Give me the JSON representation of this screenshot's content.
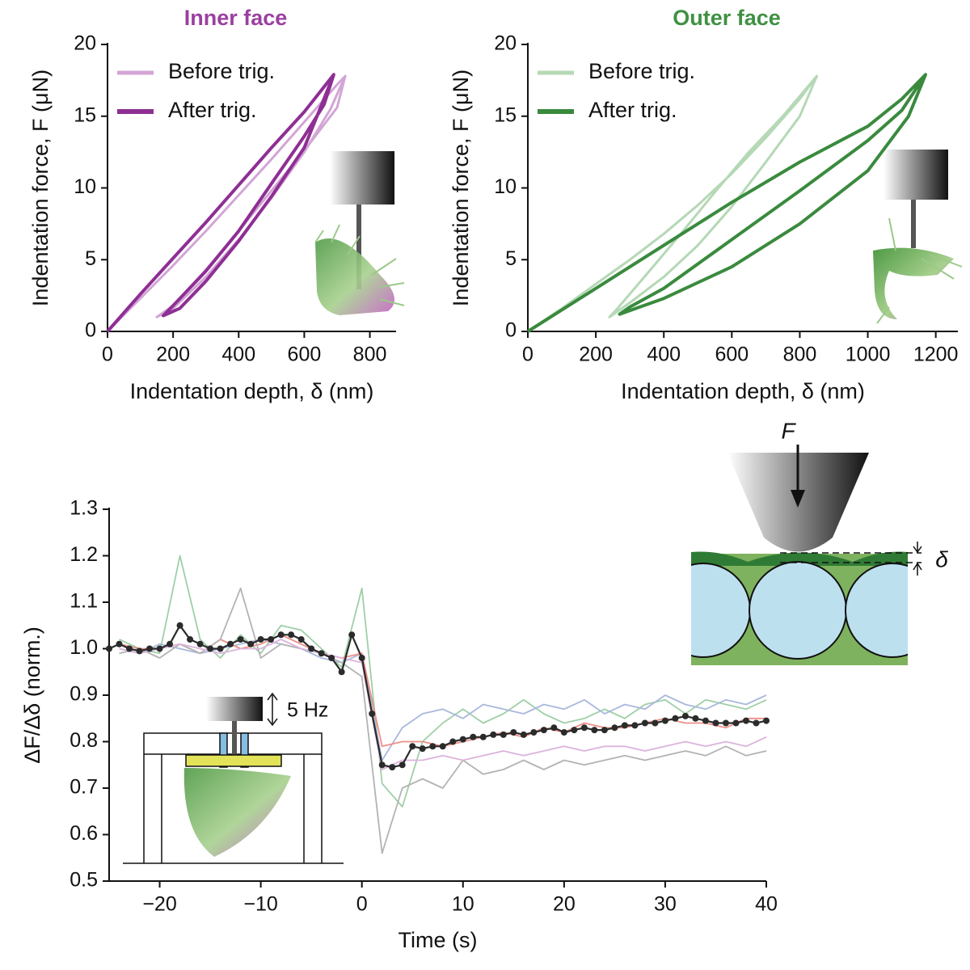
{
  "chart_data": [
    {
      "type": "line",
      "title": "Inner face",
      "title_color": "#9b3fa0",
      "xlabel": "Indentation depth, δ (nm)",
      "ylabel": "Indentation force, F (μN)",
      "xlim": [
        0,
        880
      ],
      "ylim": [
        0,
        20
      ],
      "xticks": [
        0,
        200,
        400,
        600,
        800
      ],
      "yticks": [
        0,
        5,
        10,
        15,
        20
      ],
      "legend": "upper left",
      "series": [
        {
          "name": "Before trig.",
          "color": "#d3a5d6",
          "width": 3,
          "x": [
            0,
            100,
            200,
            300,
            400,
            500,
            600,
            700,
            725,
            680,
            600,
            500,
            400,
            300,
            200,
            150,
            200,
            300,
            400,
            500,
            600,
            700,
            725
          ],
          "values": [
            0,
            2.3,
            4.6,
            7,
            9.5,
            12,
            14.6,
            17.2,
            17.8,
            15.5,
            12.5,
            9.3,
            6.4,
            3.8,
            1.6,
            1,
            1.8,
            4.3,
            7,
            9.8,
            12.6,
            15.6,
            17.8
          ]
        },
        {
          "name": "After trig.",
          "color": "#8e2f94",
          "width": 4,
          "x": [
            0,
            100,
            200,
            300,
            400,
            500,
            600,
            690,
            660,
            600,
            500,
            400,
            300,
            200,
            170,
            220,
            300,
            400,
            500,
            600,
            690
          ],
          "values": [
            0,
            2.6,
            5.1,
            7.6,
            10.2,
            12.8,
            15.3,
            17.9,
            15.8,
            13.6,
            10.3,
            7,
            4.2,
            1.8,
            1.1,
            1.6,
            3.5,
            6.3,
            9.4,
            12.8,
            17.9
          ]
        }
      ]
    },
    {
      "type": "line",
      "title": "Outer face",
      "title_color": "#3f9142",
      "xlabel": "Indentation depth, δ (nm)",
      "ylabel": "Indentation force, F (μN)",
      "xlim": [
        0,
        1265
      ],
      "ylim": [
        0,
        20
      ],
      "xticks": [
        0,
        200,
        400,
        600,
        800,
        1000,
        1200
      ],
      "yticks": [
        0,
        5,
        10,
        15,
        20
      ],
      "legend": "upper left",
      "series": [
        {
          "name": "Before trig.",
          "color": "#b5d8b5",
          "width": 3,
          "x": [
            0,
            100,
            200,
            300,
            400,
            500,
            600,
            700,
            800,
            850,
            800,
            700,
            600,
            500,
            400,
            300,
            240,
            260,
            350,
            450,
            550,
            650,
            750,
            850
          ],
          "values": [
            0,
            1.6,
            3.3,
            5,
            6.8,
            8.8,
            11,
            13.5,
            16.2,
            17.8,
            15,
            11.8,
            8.7,
            6,
            3.8,
            2,
            1,
            1.5,
            4,
            6.8,
            9.7,
            12.5,
            15,
            17.8
          ]
        },
        {
          "name": "After trig.",
          "color": "#3a8a3e",
          "width": 4,
          "x": [
            0,
            200,
            400,
            600,
            800,
            1000,
            1100,
            1170,
            1120,
            1000,
            800,
            600,
            400,
            270,
            300,
            400,
            600,
            800,
            1000,
            1100,
            1170
          ],
          "values": [
            0,
            3,
            6,
            9,
            11.8,
            14.3,
            16.2,
            17.9,
            15,
            11.2,
            7.5,
            4.5,
            2.3,
            1.2,
            1.7,
            3,
            6.4,
            9.8,
            13.3,
            15.4,
            17.9
          ]
        }
      ]
    },
    {
      "type": "line",
      "xlabel": "Time (s)",
      "ylabel": "ΔF/Δδ (norm.)",
      "xlim": [
        -25,
        40
      ],
      "ylim": [
        0.5,
        1.3
      ],
      "xticks": [
        {
          "value": -20,
          "label": "−20"
        },
        {
          "value": -10,
          "label": "−10"
        },
        0,
        10,
        20,
        30,
        40
      ],
      "yticks": [
        0.5,
        0.6,
        0.7,
        0.8,
        0.9,
        {
          "value": 1,
          "label": "1.0"
        },
        1.1,
        1.2,
        1.3
      ],
      "annotations": [
        "5 Hz",
        "F",
        "δ"
      ],
      "x": [
        -25,
        -24,
        -23,
        -22,
        -21,
        -20,
        -19,
        -18,
        -17,
        -16,
        -15,
        -14,
        -13,
        -12,
        -11,
        -10,
        -9,
        -8,
        -7,
        -6,
        -5,
        -4,
        -3,
        -2,
        -1,
        0,
        1,
        2,
        3,
        4,
        5,
        6,
        7,
        8,
        9,
        10,
        11,
        12,
        13,
        14,
        15,
        16,
        17,
        18,
        19,
        20,
        21,
        22,
        23,
        24,
        25,
        26,
        27,
        28,
        29,
        30,
        31,
        32,
        33,
        34,
        35,
        36,
        37,
        38,
        39,
        40
      ],
      "series": [
        {
          "color": "#9fcfa6",
          "width": 1.8,
          "x": [
            -24,
            -22,
            -20,
            -18,
            -16,
            -14,
            -12,
            -10,
            -8,
            -6,
            -4,
            -2,
            0,
            2,
            4,
            6,
            8,
            10,
            12,
            14,
            16,
            18,
            20,
            22,
            24,
            26,
            28,
            30,
            32,
            34,
            36,
            38,
            40
          ],
          "values": [
            1.02,
            1.0,
            0.99,
            1.2,
            1.02,
            0.98,
            1.03,
            0.99,
            1.05,
            1.04,
            1.0,
            0.96,
            1.13,
            0.71,
            0.66,
            0.8,
            0.84,
            0.87,
            0.84,
            0.86,
            0.89,
            0.86,
            0.84,
            0.85,
            0.87,
            0.85,
            0.88,
            0.89,
            0.86,
            0.89,
            0.88,
            0.87,
            0.89
          ]
        },
        {
          "color": "#a9b8dc",
          "width": 1.8,
          "x": [
            -24,
            -22,
            -20,
            -18,
            -16,
            -14,
            -12,
            -10,
            -8,
            -6,
            -4,
            -2,
            0,
            2,
            4,
            6,
            8,
            10,
            12,
            14,
            16,
            18,
            20,
            22,
            24,
            26,
            28,
            30,
            32,
            34,
            36,
            38,
            40
          ],
          "values": [
            1.0,
            0.99,
            1.01,
            1.0,
            0.99,
            1.0,
            1.01,
            1.02,
            1.01,
            1.0,
            0.98,
            0.97,
            0.99,
            0.76,
            0.83,
            0.86,
            0.87,
            0.85,
            0.88,
            0.87,
            0.86,
            0.88,
            0.87,
            0.89,
            0.86,
            0.88,
            0.87,
            0.9,
            0.88,
            0.87,
            0.89,
            0.88,
            0.9
          ]
        },
        {
          "color": "#ee8f86",
          "width": 1.8,
          "x": [
            -24,
            -22,
            -20,
            -18,
            -16,
            -14,
            -12,
            -10,
            -8,
            -6,
            -4,
            -2,
            0,
            2,
            4,
            6,
            8,
            10,
            12,
            14,
            16,
            18,
            20,
            22,
            24,
            26,
            28,
            30,
            32,
            34,
            36,
            38,
            40
          ],
          "values": [
            1.01,
            1.0,
            1.0,
            1.01,
            0.99,
            1.02,
            1.0,
            1.01,
            1.03,
            1.01,
            0.99,
            0.98,
            0.99,
            0.79,
            0.8,
            0.8,
            0.79,
            0.8,
            0.81,
            0.82,
            0.81,
            0.83,
            0.82,
            0.84,
            0.83,
            0.83,
            0.84,
            0.85,
            0.84,
            0.84,
            0.83,
            0.85,
            0.85
          ]
        },
        {
          "color": "#b3b3b3",
          "width": 1.8,
          "x": [
            -24,
            -22,
            -20,
            -18,
            -16,
            -14,
            -12,
            -10,
            -8,
            -6,
            -4,
            -2,
            0,
            2,
            4,
            6,
            8,
            10,
            12,
            14,
            16,
            18,
            20,
            22,
            24,
            26,
            28,
            30,
            32,
            34,
            36,
            38,
            40
          ],
          "values": [
            0.99,
            1.0,
            0.98,
            1.01,
            0.99,
            1.02,
            1.13,
            0.98,
            1.01,
            1.0,
            0.99,
            0.97,
            0.94,
            0.56,
            0.7,
            0.72,
            0.7,
            0.76,
            0.73,
            0.74,
            0.76,
            0.74,
            0.76,
            0.75,
            0.76,
            0.77,
            0.76,
            0.77,
            0.78,
            0.77,
            0.79,
            0.77,
            0.78
          ]
        },
        {
          "color": "#dcb3dc",
          "width": 1.8,
          "x": [
            -24,
            -22,
            -20,
            -18,
            -16,
            -14,
            -12,
            -10,
            -8,
            -6,
            -4,
            -2,
            0,
            2,
            4,
            6,
            8,
            10,
            12,
            14,
            16,
            18,
            20,
            22,
            24,
            26,
            28,
            30,
            32,
            34,
            36,
            38,
            40
          ],
          "values": [
            1.0,
            0.99,
            1.0,
            1.01,
            1.0,
            0.99,
            1.0,
            1.0,
            1.02,
            1.0,
            0.99,
            0.98,
            0.97,
            0.74,
            0.76,
            0.76,
            0.77,
            0.76,
            0.77,
            0.78,
            0.77,
            0.78,
            0.79,
            0.78,
            0.79,
            0.79,
            0.78,
            0.79,
            0.8,
            0.79,
            0.8,
            0.79,
            0.81
          ]
        },
        {
          "color": "#2b2b2b",
          "width": 2.2,
          "marker": "o",
          "values": [
            1.0,
            1.01,
            1.0,
            0.995,
            1.0,
            1.0,
            1.01,
            1.05,
            1.02,
            1.01,
            1.0,
            1.0,
            1.01,
            1.02,
            1.01,
            1.02,
            1.02,
            1.03,
            1.03,
            1.02,
            1.0,
            0.99,
            0.98,
            0.95,
            1.03,
            0.98,
            0.86,
            0.75,
            0.745,
            0.75,
            0.79,
            0.785,
            0.79,
            0.79,
            0.8,
            0.805,
            0.81,
            0.81,
            0.815,
            0.815,
            0.82,
            0.815,
            0.82,
            0.825,
            0.83,
            0.82,
            0.825,
            0.83,
            0.825,
            0.825,
            0.83,
            0.835,
            0.835,
            0.84,
            0.84,
            0.845,
            0.85,
            0.855,
            0.85,
            0.845,
            0.84,
            0.84,
            0.84,
            0.845,
            0.84,
            0.845
          ]
        }
      ]
    }
  ]
}
